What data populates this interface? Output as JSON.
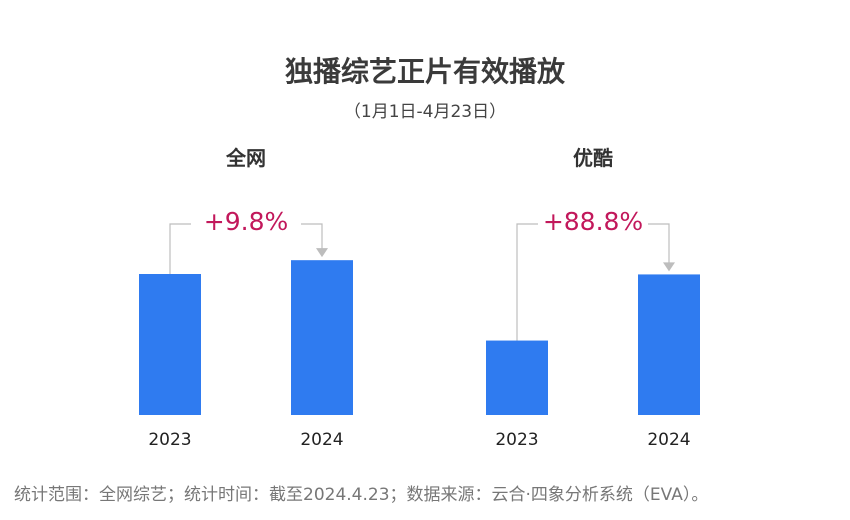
{
  "title": "独播综艺正片有效播放",
  "subtitle": "（1月1日-4月23日）",
  "footer": "统计范围：全网综艺；统计时间：截至2024.4.23；数据来源：云合·四象分析系统（EVA）。",
  "colors": {
    "bar": "#2f7bf0",
    "growth": "#c2185b",
    "connector": "#bdbdbd"
  },
  "chart_data": [
    {
      "type": "bar",
      "title": "全网",
      "categories": [
        "2023",
        "2024"
      ],
      "values": [
        100,
        109.8
      ],
      "annotation": "+9.8%"
    },
    {
      "type": "bar",
      "title": "优酷",
      "categories": [
        "2023",
        "2024"
      ],
      "values": [
        52.8,
        99.7
      ],
      "annotation": "+88.8%"
    }
  ]
}
